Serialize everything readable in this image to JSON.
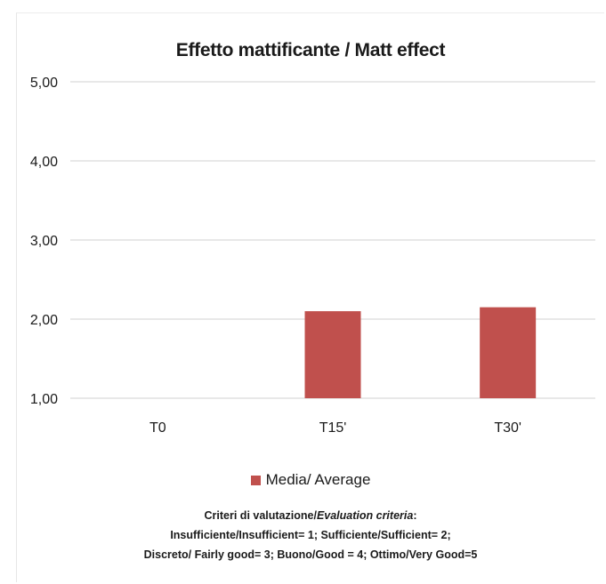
{
  "colors": {
    "bar": "#c0504d",
    "grid": "#d9d9d9",
    "text": "#1a1a1a"
  },
  "chart_data": {
    "type": "bar",
    "title": "Effetto mattificante / Matt effect",
    "categories": [
      "T0",
      "T15'",
      "T30'"
    ],
    "series": [
      {
        "name": "Media/ Average",
        "values": [
          1.0,
          2.1,
          2.15
        ]
      }
    ],
    "ylim": [
      1,
      5
    ],
    "yticks": [
      "1,00",
      "2,00",
      "3,00",
      "4,00",
      "5,00"
    ],
    "grid": true,
    "legend": "bottom"
  },
  "criteria": {
    "heading_a": "Criteri di valutazione/",
    "heading_b": "Evaluation criteria",
    "heading_c": ":",
    "line1": "Insufficiente/Insufficient=  1;  Sufficiente/Sufficient= 2;",
    "line2": "Discreto/ Fairly good= 3;  Buono/Good = 4; Ottimo/Very Good=5"
  }
}
